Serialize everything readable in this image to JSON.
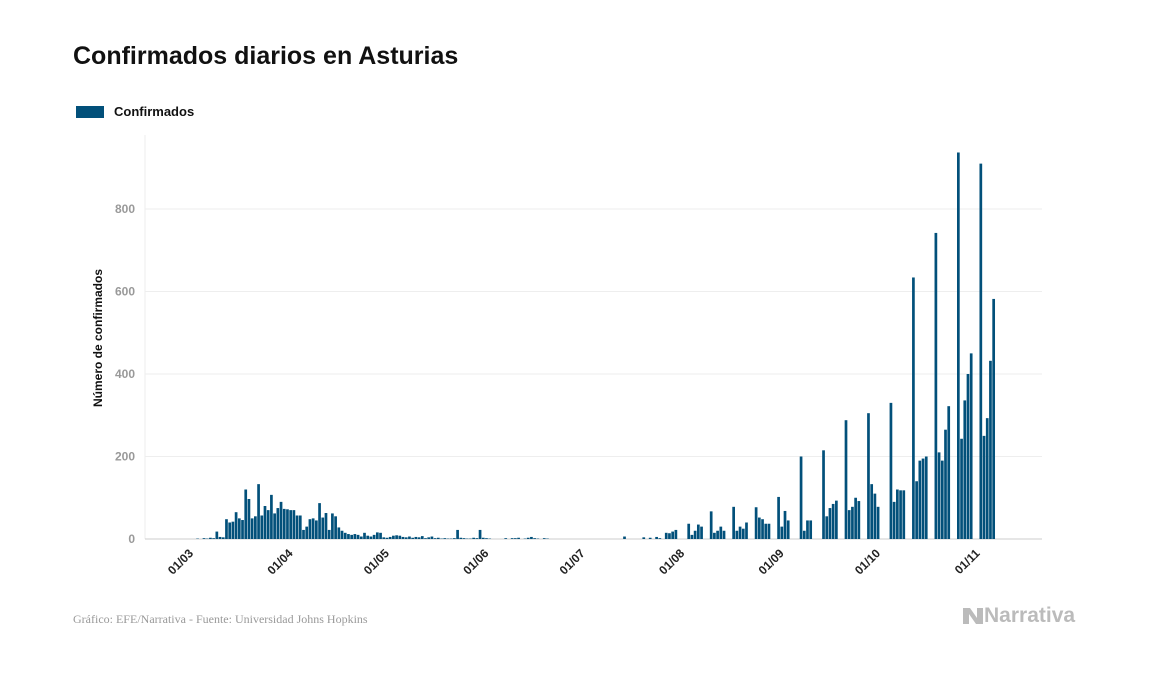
{
  "chart_data": {
    "type": "bar",
    "title": "Confirmados diarios en Asturias",
    "ylabel": "Número de confirmados",
    "xlabel": "",
    "ylim": [
      0,
      980
    ],
    "yticks": [
      0,
      200,
      400,
      600,
      800
    ],
    "xticks": [
      "01/03",
      "01/04",
      "01/05",
      "01/06",
      "01/07",
      "01/08",
      "01/09",
      "01/10",
      "01/11"
    ],
    "grid": "horizontal",
    "legend_position": "top-left",
    "bar_color": "#02507a",
    "series": [
      {
        "name": "Confirmados",
        "points": [
          [
            "04/03",
            1
          ],
          [
            "06/03",
            2
          ],
          [
            "07/03",
            1
          ],
          [
            "08/03",
            3
          ],
          [
            "09/03",
            2
          ],
          [
            "10/03",
            18
          ],
          [
            "11/03",
            5
          ],
          [
            "12/03",
            4
          ],
          [
            "13/03",
            48
          ],
          [
            "14/03",
            40
          ],
          [
            "15/03",
            42
          ],
          [
            "16/03",
            65
          ],
          [
            "17/03",
            50
          ],
          [
            "18/03",
            46
          ],
          [
            "19/03",
            120
          ],
          [
            "20/03",
            97
          ],
          [
            "21/03",
            50
          ],
          [
            "22/03",
            55
          ],
          [
            "23/03",
            133
          ],
          [
            "24/03",
            57
          ],
          [
            "25/03",
            80
          ],
          [
            "26/03",
            70
          ],
          [
            "27/03",
            107
          ],
          [
            "28/03",
            62
          ],
          [
            "29/03",
            75
          ],
          [
            "30/03",
            90
          ],
          [
            "31/03",
            73
          ],
          [
            "01/04",
            72
          ],
          [
            "02/04",
            70
          ],
          [
            "03/04",
            70
          ],
          [
            "04/04",
            57
          ],
          [
            "05/04",
            57
          ],
          [
            "06/04",
            22
          ],
          [
            "07/04",
            30
          ],
          [
            "08/04",
            48
          ],
          [
            "09/04",
            50
          ],
          [
            "10/04",
            45
          ],
          [
            "11/04",
            87
          ],
          [
            "12/04",
            52
          ],
          [
            "13/04",
            63
          ],
          [
            "14/04",
            22
          ],
          [
            "15/04",
            62
          ],
          [
            "16/04",
            55
          ],
          [
            "17/04",
            28
          ],
          [
            "18/04",
            20
          ],
          [
            "19/04",
            15
          ],
          [
            "20/04",
            12
          ],
          [
            "21/04",
            10
          ],
          [
            "22/04",
            12
          ],
          [
            "23/04",
            10
          ],
          [
            "24/04",
            6
          ],
          [
            "25/04",
            15
          ],
          [
            "26/04",
            8
          ],
          [
            "27/04",
            6
          ],
          [
            "28/04",
            10
          ],
          [
            "29/04",
            16
          ],
          [
            "30/04",
            15
          ],
          [
            "01/05",
            4
          ],
          [
            "02/05",
            3
          ],
          [
            "03/05",
            5
          ],
          [
            "04/05",
            8
          ],
          [
            "05/05",
            9
          ],
          [
            "06/05",
            8
          ],
          [
            "07/05",
            5
          ],
          [
            "08/05",
            4
          ],
          [
            "09/05",
            6
          ],
          [
            "10/05",
            3
          ],
          [
            "11/05",
            5
          ],
          [
            "12/05",
            4
          ],
          [
            "13/05",
            7
          ],
          [
            "14/05",
            2
          ],
          [
            "15/05",
            4
          ],
          [
            "16/05",
            6
          ],
          [
            "17/05",
            2
          ],
          [
            "18/05",
            3
          ],
          [
            "19/05",
            1
          ],
          [
            "20/05",
            2
          ],
          [
            "21/05",
            1
          ],
          [
            "22/05",
            1
          ],
          [
            "23/05",
            2
          ],
          [
            "24/05",
            22
          ],
          [
            "25/05",
            3
          ],
          [
            "26/05",
            2
          ],
          [
            "27/05",
            1
          ],
          [
            "28/05",
            1
          ],
          [
            "29/05",
            3
          ],
          [
            "30/05",
            2
          ],
          [
            "31/05",
            22
          ],
          [
            "01/06",
            3
          ],
          [
            "02/06",
            2
          ],
          [
            "03/06",
            1
          ],
          [
            "08/06",
            2
          ],
          [
            "10/06",
            2
          ],
          [
            "11/06",
            2
          ],
          [
            "12/06",
            3
          ],
          [
            "14/06",
            1
          ],
          [
            "15/06",
            3
          ],
          [
            "16/06",
            5
          ],
          [
            "17/06",
            2
          ],
          [
            "18/06",
            1
          ],
          [
            "20/06",
            2
          ],
          [
            "21/06",
            1
          ],
          [
            "15/07",
            6
          ],
          [
            "21/07",
            4
          ],
          [
            "23/07",
            3
          ],
          [
            "25/07",
            5
          ],
          [
            "26/07",
            2
          ],
          [
            "28/07",
            15
          ],
          [
            "29/07",
            14
          ],
          [
            "30/07",
            18
          ],
          [
            "31/07",
            22
          ],
          [
            "04/08",
            37
          ],
          [
            "05/08",
            10
          ],
          [
            "06/08",
            20
          ],
          [
            "07/08",
            35
          ],
          [
            "08/08",
            30
          ],
          [
            "11/08",
            67
          ],
          [
            "12/08",
            15
          ],
          [
            "13/08",
            20
          ],
          [
            "14/08",
            30
          ],
          [
            "15/08",
            20
          ],
          [
            "18/08",
            78
          ],
          [
            "19/08",
            20
          ],
          [
            "20/08",
            30
          ],
          [
            "21/08",
            25
          ],
          [
            "22/08",
            40
          ],
          [
            "25/08",
            77
          ],
          [
            "26/08",
            52
          ],
          [
            "27/08",
            48
          ],
          [
            "28/08",
            37
          ],
          [
            "29/08",
            37
          ],
          [
            "01/09",
            102
          ],
          [
            "02/09",
            30
          ],
          [
            "03/09",
            68
          ],
          [
            "04/09",
            45
          ],
          [
            "08/09",
            200
          ],
          [
            "09/09",
            20
          ],
          [
            "10/09",
            45
          ],
          [
            "11/09",
            45
          ],
          [
            "15/09",
            215
          ],
          [
            "16/09",
            55
          ],
          [
            "17/09",
            75
          ],
          [
            "18/09",
            85
          ],
          [
            "19/09",
            93
          ],
          [
            "22/09",
            288
          ],
          [
            "23/09",
            70
          ],
          [
            "24/09",
            78
          ],
          [
            "25/09",
            100
          ],
          [
            "26/09",
            92
          ],
          [
            "29/09",
            305
          ],
          [
            "30/09",
            133
          ],
          [
            "01/10",
            110
          ],
          [
            "02/10",
            78
          ],
          [
            "06/10",
            330
          ],
          [
            "07/10",
            90
          ],
          [
            "08/10",
            120
          ],
          [
            "09/10",
            118
          ],
          [
            "10/10",
            118
          ],
          [
            "13/10",
            634
          ],
          [
            "14/10",
            140
          ],
          [
            "15/10",
            190
          ],
          [
            "16/10",
            195
          ],
          [
            "17/10",
            200
          ],
          [
            "20/10",
            742
          ],
          [
            "21/10",
            210
          ],
          [
            "22/10",
            190
          ],
          [
            "23/10",
            265
          ],
          [
            "24/10",
            322
          ],
          [
            "27/10",
            937
          ],
          [
            "28/10",
            243
          ],
          [
            "29/10",
            336
          ],
          [
            "30/10",
            400
          ],
          [
            "31/10",
            450
          ],
          [
            "03/11",
            910
          ],
          [
            "04/11",
            250
          ],
          [
            "05/11",
            293
          ],
          [
            "06/11",
            432
          ],
          [
            "07/11",
            582
          ]
        ]
      }
    ]
  },
  "source": "Gráfico: EFE/Narrativa - Fuente: Universidad Johns Hopkins",
  "logo": "Narrativa"
}
